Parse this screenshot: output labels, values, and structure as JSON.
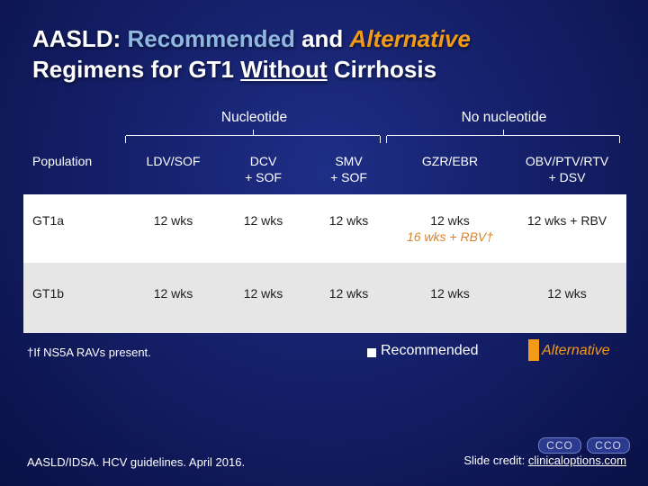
{
  "title": {
    "part1": "AASLD:",
    "part2": "Recommended",
    "part3": "and",
    "part4": "Alternative",
    "part5": "Regimens for GT1",
    "part6": "Without",
    "part7": "Cirrhosis"
  },
  "groups": {
    "nucleotide": "Nucleotide",
    "no_nucleotide": "No nucleotide"
  },
  "columns": {
    "population": "Population",
    "ldv_sof": "LDV/SOF",
    "dcv_sof_1": "DCV",
    "dcv_sof_2": "+ SOF",
    "smv_sof_1": "SMV",
    "smv_sof_2": "+ SOF",
    "gzr_ebr": "GZR/EBR",
    "obv_1": "OBV/PTV/RTV",
    "obv_2": "+ DSV"
  },
  "rows": [
    {
      "population": "GT1a",
      "ldv_sof": "12 wks",
      "dcv_sof": "12 wks",
      "smv_sof": "12 wks",
      "gzr_ebr": "12 wks",
      "gzr_ebr_alt": "16 wks + RBV†",
      "obv": "12 wks + RBV"
    },
    {
      "population": "GT1b",
      "ldv_sof": "12 wks",
      "dcv_sof": "12 wks",
      "smv_sof": "12 wks",
      "gzr_ebr": "12 wks",
      "obv": "12 wks"
    }
  ],
  "footnote": "†If NS5A RAVs present.",
  "legend": {
    "recommended": "Recommended",
    "alternative": "Alternative"
  },
  "colors": {
    "background": "#15206a",
    "title_blue": "#8fb7e0",
    "accent_orange": "#f39a16"
  },
  "citation": "AASLD/IDSA. HCV guidelines. April 2016.",
  "credit": {
    "prefix": "Slide credit:",
    "link": "clinicaloptions.com"
  },
  "logo": {
    "left": "CCO",
    "right": "CCO"
  }
}
